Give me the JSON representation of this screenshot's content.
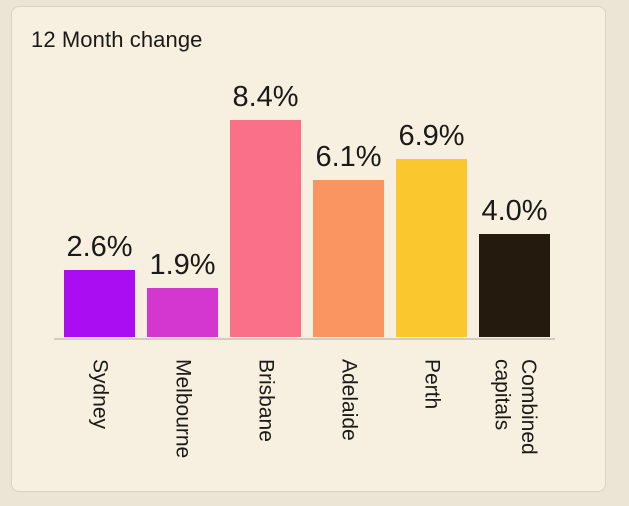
{
  "card": {
    "title": "12 Month change"
  },
  "chart_data": {
    "type": "bar",
    "title": "12 Month change",
    "categories": [
      "Sydney",
      "Melbourne",
      "Brisbane",
      "Adelaide",
      "Perth",
      "Combined capitals"
    ],
    "values": [
      2.6,
      1.9,
      8.4,
      6.1,
      6.9,
      4.0
    ],
    "value_labels": [
      "2.6%",
      "1.9%",
      "8.4%",
      "6.1%",
      "6.9%",
      "4.0%"
    ],
    "tick_labels": [
      "Sydney",
      "Melbourne",
      "Brisbane",
      "Adelaide",
      "Perth",
      "Combined\ncapitals"
    ],
    "unit": "%",
    "ylim": [
      0,
      9
    ],
    "grid": false,
    "legend": false,
    "value_label_position": "above-bar",
    "x_tick_rotation_deg": 90,
    "colors": [
      "#aa0df2",
      "#d436d0",
      "#fa7088",
      "#fa9562",
      "#fbc72f",
      "#241a0d"
    ],
    "background_color": "#f7f0e1",
    "page_background": "#ece5d6",
    "border_color": "#d8d2c5",
    "baseline_color": "#d2ccc0",
    "text_color": "#1b1a17"
  }
}
